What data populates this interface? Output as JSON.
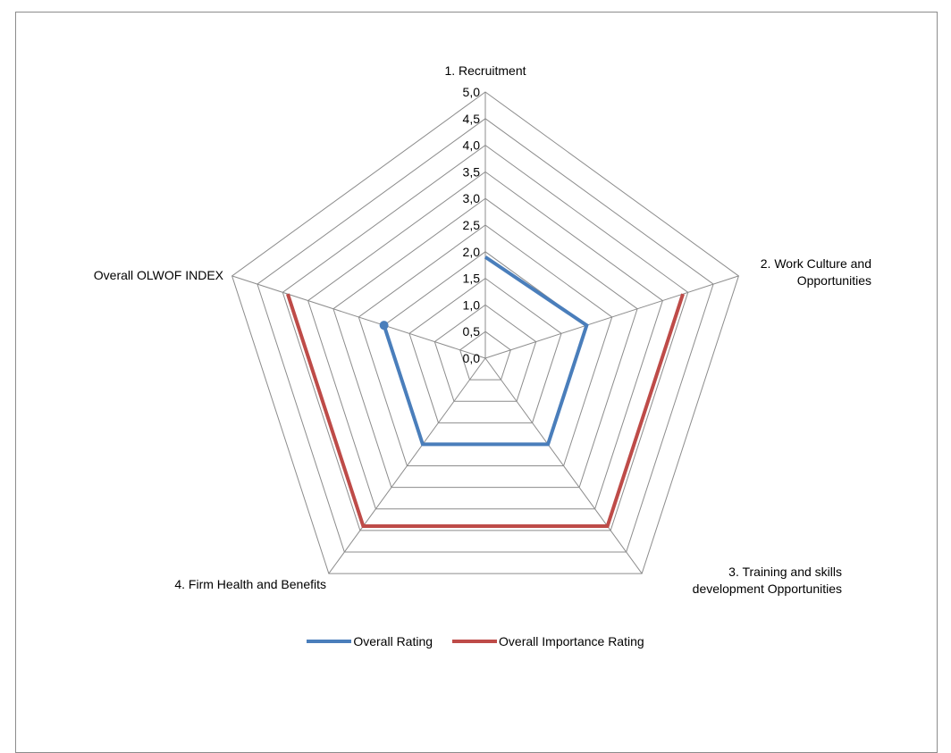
{
  "chart_data": {
    "type": "radar",
    "categories": [
      "1. Recruitment",
      "2. Work Culture and Opportunities",
      "3. Training and skills development Opportunities",
      "4. Firm Health and Benefits",
      "Overall OLWOF INDEX"
    ],
    "category_label_lines": [
      [
        "1. Recruitment"
      ],
      [
        "2. Work Culture and",
        "Opportunities"
      ],
      [
        "3. Training and skills",
        "development Opportunities"
      ],
      [
        "4. Firm Health and Benefits"
      ],
      [
        "Overall OLWOF INDEX"
      ]
    ],
    "rlim": [
      0,
      5
    ],
    "ticks": [
      "0,0",
      "0,5",
      "1,0",
      "1,5",
      "2,0",
      "2,5",
      "3,0",
      "3,5",
      "4,0",
      "4,5",
      "5,0"
    ],
    "grid": true,
    "series": [
      {
        "name": "Overall Rating",
        "color": "#4a7ebb",
        "values": [
          1.9,
          2.0,
          2.0,
          2.0,
          2.0
        ],
        "marker_on_last": true
      },
      {
        "name": "Overall Importance Rating",
        "color": "#be4b48",
        "values": [
          null,
          3.9,
          3.9,
          3.9,
          3.9
        ]
      }
    ],
    "legend_position": "bottom"
  }
}
